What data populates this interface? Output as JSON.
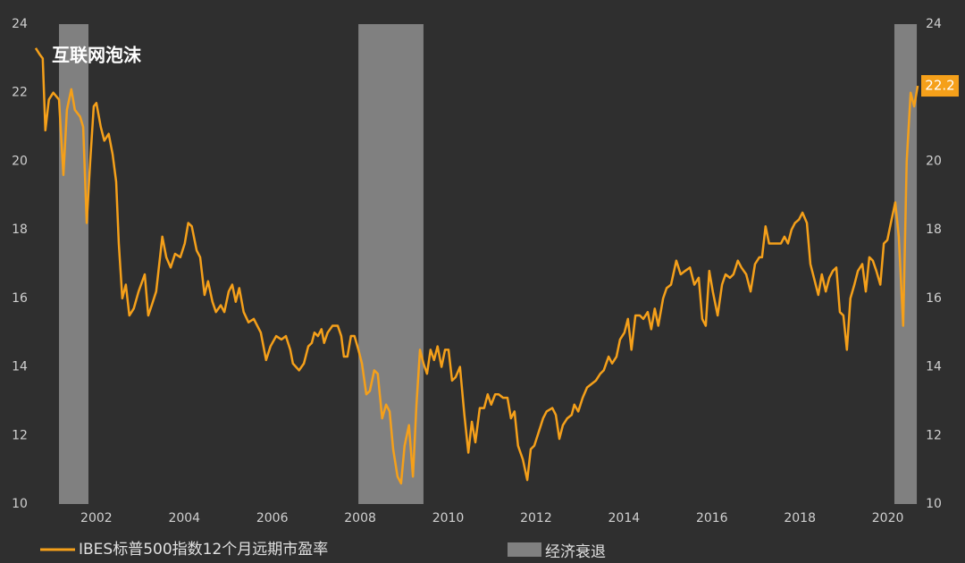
{
  "chart_data": {
    "type": "line",
    "annotation": "互联网泡沫",
    "x": [
      2000.62,
      2000.72,
      2000.78,
      2000.84,
      2000.92,
      2001.02,
      2001.15,
      2001.25,
      2001.33,
      2001.43,
      2001.51,
      2001.63,
      2001.7,
      2001.78,
      2001.86,
      2001.94,
      2002.0,
      2002.1,
      2002.18,
      2002.28,
      2002.37,
      2002.45,
      2002.51,
      2002.59,
      2002.67,
      2002.75,
      2002.85,
      2002.96,
      2003.1,
      2003.18,
      2003.26,
      2003.36,
      2003.5,
      2003.59,
      2003.69,
      2003.79,
      2003.91,
      2004.01,
      2004.09,
      2004.17,
      2004.28,
      2004.36,
      2004.46,
      2004.54,
      2004.64,
      2004.72,
      2004.83,
      2004.91,
      2005.01,
      2005.09,
      2005.17,
      2005.25,
      2005.35,
      2005.46,
      2005.58,
      2005.74,
      2005.86,
      2005.96,
      2006.09,
      2006.21,
      2006.31,
      2006.41,
      2006.47,
      2006.61,
      2006.72,
      2006.82,
      2006.9,
      2006.96,
      2007.04,
      2007.12,
      2007.18,
      2007.26,
      2007.37,
      2007.49,
      2007.57,
      2007.63,
      2007.71,
      2007.79,
      2007.87,
      2007.96,
      2008.04,
      2008.14,
      2008.22,
      2008.32,
      2008.4,
      2008.5,
      2008.59,
      2008.67,
      2008.75,
      2008.85,
      2008.93,
      2009.01,
      2009.11,
      2009.2,
      2009.28,
      2009.36,
      2009.44,
      2009.52,
      2009.6,
      2009.68,
      2009.76,
      2009.85,
      2009.93,
      2010.01,
      2010.09,
      2010.17,
      2010.27,
      2010.37,
      2010.46,
      2010.54,
      2010.62,
      2010.72,
      2010.82,
      2010.9,
      2010.98,
      2011.07,
      2011.15,
      2011.25,
      2011.35,
      2011.43,
      2011.51,
      2011.59,
      2011.7,
      2011.8,
      2011.88,
      2011.96,
      2012.06,
      2012.16,
      2012.24,
      2012.37,
      2012.45,
      2012.53,
      2012.61,
      2012.71,
      2012.81,
      2012.87,
      2012.96,
      2013.06,
      2013.16,
      2013.26,
      2013.36,
      2013.46,
      2013.54,
      2013.65,
      2013.73,
      2013.83,
      2013.91,
      2014.01,
      2014.09,
      2014.17,
      2014.26,
      2014.36,
      2014.44,
      2014.54,
      2014.62,
      2014.7,
      2014.78,
      2014.89,
      2014.97,
      2015.07,
      2015.19,
      2015.29,
      2015.39,
      2015.5,
      2015.6,
      2015.7,
      2015.78,
      2015.86,
      2015.94,
      2016.02,
      2016.13,
      2016.23,
      2016.31,
      2016.41,
      2016.49,
      2016.59,
      2016.67,
      2016.78,
      2016.88,
      2016.98,
      2017.08,
      2017.14,
      2017.22,
      2017.3,
      2017.41,
      2017.49,
      2017.57,
      2017.65,
      2017.73,
      2017.81,
      2017.89,
      2017.98,
      2018.06,
      2018.16,
      2018.24,
      2018.32,
      2018.42,
      2018.5,
      2018.59,
      2018.67,
      2018.75,
      2018.83,
      2018.91,
      2018.99,
      2019.07,
      2019.15,
      2019.24,
      2019.32,
      2019.42,
      2019.5,
      2019.58,
      2019.66,
      2019.74,
      2019.83,
      2019.91,
      2019.99,
      2020.07,
      2020.17,
      2020.25,
      2020.35,
      2020.43,
      2020.52,
      2020.6,
      2020.68
    ],
    "series": [
      {
        "name": "IBES标普500指数12个月远期市盈率",
        "color": "#f5a01a",
        "end_value_label": 22.2,
        "values": [
          23.3,
          23.1,
          23.0,
          20.9,
          21.8,
          22.0,
          21.8,
          19.6,
          21.5,
          22.1,
          21.5,
          21.3,
          21.0,
          18.2,
          20.0,
          21.6,
          21.7,
          21.0,
          20.6,
          20.8,
          20.2,
          19.4,
          17.6,
          16.0,
          16.4,
          15.5,
          15.7,
          16.2,
          16.7,
          15.5,
          15.8,
          16.2,
          17.8,
          17.2,
          16.9,
          17.3,
          17.2,
          17.6,
          18.2,
          18.1,
          17.4,
          17.2,
          16.1,
          16.5,
          15.9,
          15.6,
          15.8,
          15.6,
          16.2,
          16.4,
          15.9,
          16.3,
          15.6,
          15.3,
          15.4,
          15.0,
          14.2,
          14.6,
          14.9,
          14.8,
          14.9,
          14.5,
          14.1,
          13.9,
          14.1,
          14.6,
          14.7,
          15.0,
          14.9,
          15.1,
          14.7,
          15.0,
          15.2,
          15.2,
          14.9,
          14.3,
          14.3,
          14.9,
          14.9,
          14.5,
          14.1,
          13.2,
          13.3,
          13.9,
          13.8,
          12.5,
          12.9,
          12.7,
          11.6,
          10.8,
          10.6,
          11.7,
          12.3,
          10.8,
          12.9,
          14.5,
          14.1,
          13.8,
          14.5,
          14.2,
          14.6,
          14.0,
          14.5,
          14.5,
          13.6,
          13.7,
          14.0,
          12.6,
          11.5,
          12.4,
          11.8,
          12.8,
          12.8,
          13.2,
          12.9,
          13.2,
          13.2,
          13.1,
          13.1,
          12.5,
          12.7,
          11.7,
          11.3,
          10.7,
          11.6,
          11.7,
          12.1,
          12.5,
          12.7,
          12.8,
          12.6,
          11.9,
          12.3,
          12.5,
          12.6,
          12.9,
          12.7,
          13.1,
          13.4,
          13.5,
          13.6,
          13.8,
          13.9,
          14.3,
          14.1,
          14.3,
          14.8,
          15.0,
          15.4,
          14.5,
          15.5,
          15.5,
          15.4,
          15.6,
          15.1,
          15.7,
          15.2,
          16.0,
          16.3,
          16.4,
          17.1,
          16.7,
          16.8,
          16.9,
          16.4,
          16.6,
          15.4,
          15.2,
          16.8,
          16.2,
          15.5,
          16.4,
          16.7,
          16.6,
          16.7,
          17.1,
          16.9,
          16.7,
          16.2,
          17.0,
          17.2,
          17.2,
          18.1,
          17.6,
          17.6,
          17.6,
          17.6,
          17.8,
          17.6,
          18.0,
          18.2,
          18.3,
          18.5,
          18.2,
          17.0,
          16.6,
          16.1,
          16.7,
          16.2,
          16.6,
          16.8,
          16.9,
          15.6,
          15.5,
          14.5,
          16.0,
          16.4,
          16.8,
          17.0,
          16.2,
          17.2,
          17.1,
          16.8,
          16.4,
          17.6,
          17.7,
          18.2,
          18.8,
          17.8,
          15.2,
          20.0,
          22.0,
          21.6,
          22.2
        ]
      }
    ],
    "recessions": {
      "name": "经济衰退",
      "color": "#808080",
      "ranges": [
        [
          2001.15,
          2001.82
        ],
        [
          2007.96,
          2009.44
        ],
        [
          2020.15,
          2020.66
        ]
      ]
    },
    "xlim": [
      2000.56,
      2020.74
    ],
    "xticks": [
      2002,
      2004,
      2006,
      2008,
      2010,
      2012,
      2014,
      2016,
      2018,
      2020
    ],
    "ylim": [
      10,
      24
    ],
    "yticks": [
      10,
      12,
      14,
      16,
      18,
      20,
      22,
      24
    ],
    "y2lim": [
      10,
      24
    ],
    "y2ticks": [
      10,
      12,
      14,
      16,
      18,
      20,
      22,
      24
    ],
    "grid": false
  }
}
